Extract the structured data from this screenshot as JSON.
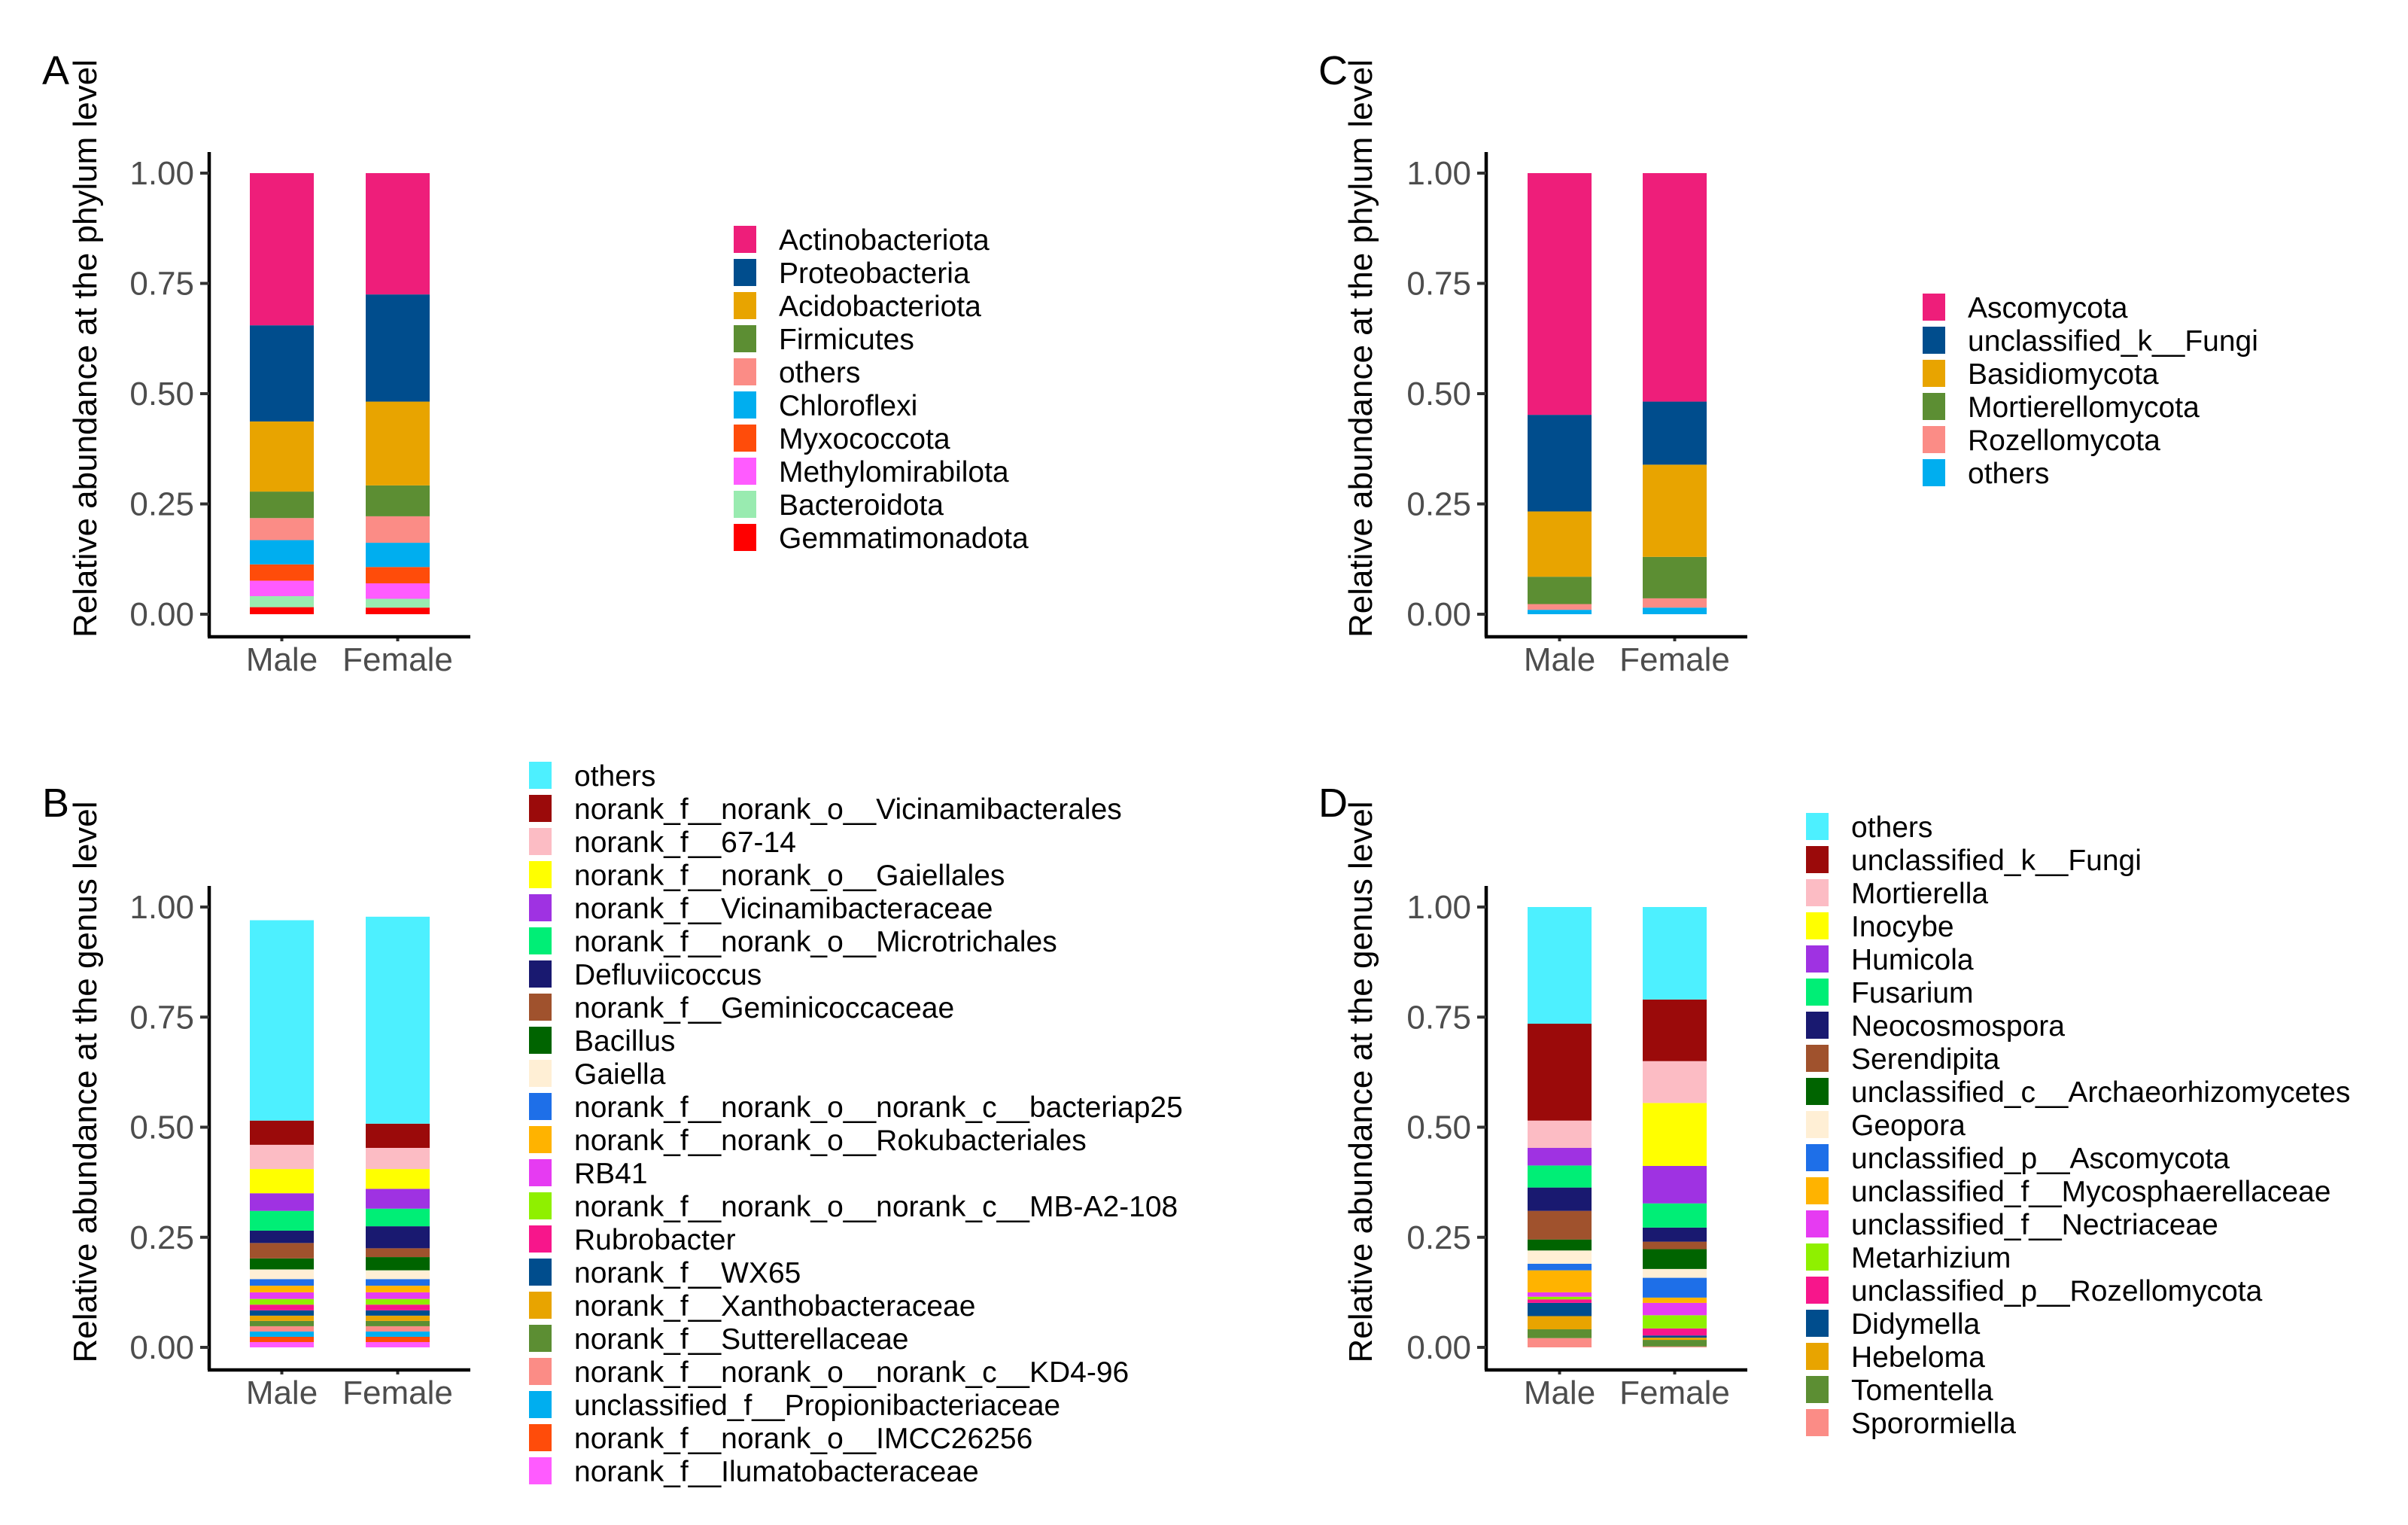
{
  "chart_data": [
    {
      "panel": "A",
      "type": "stacked-bar",
      "ylabel": "Relative abundance at the phylum level",
      "xlabel": "",
      "categories": [
        "Male",
        "Female"
      ],
      "yticks": [
        "0.00",
        "0.25",
        "0.50",
        "0.75",
        "1.00"
      ],
      "ylim": [
        0,
        1
      ],
      "legend_position": "right",
      "series": [
        {
          "name": "Actinobacteriota",
          "color": "#EE1E7A",
          "values": [
            0.345,
            0.275
          ]
        },
        {
          "name": "Proteobacteria",
          "color": "#004D8D",
          "values": [
            0.218,
            0.243
          ]
        },
        {
          "name": "Acidobacteriota",
          "color": "#E8A400",
          "values": [
            0.159,
            0.19
          ]
        },
        {
          "name": "Firmicutes",
          "color": "#5C8E33",
          "values": [
            0.06,
            0.07
          ]
        },
        {
          "name": "others",
          "color": "#FB8C86",
          "values": [
            0.05,
            0.06
          ]
        },
        {
          "name": "Chloroflexi",
          "color": "#00AEEF",
          "values": [
            0.055,
            0.055
          ]
        },
        {
          "name": "Myxococcota",
          "color": "#FF4C0A",
          "values": [
            0.037,
            0.037
          ]
        },
        {
          "name": "Methylomirabilota",
          "color": "#FF5BFF",
          "values": [
            0.035,
            0.035
          ]
        },
        {
          "name": "Bacteroidota",
          "color": "#99EBB0",
          "values": [
            0.025,
            0.02
          ]
        },
        {
          "name": "Gemmatimonadota",
          "color": "#FF0000",
          "values": [
            0.016,
            0.015
          ]
        }
      ]
    },
    {
      "panel": "B",
      "type": "stacked-bar",
      "ylabel": "Relative abundance at the genus level",
      "xlabel": "",
      "categories": [
        "Male",
        "Female"
      ],
      "yticks": [
        "0.00",
        "0.25",
        "0.50",
        "0.75",
        "1.00"
      ],
      "ylim": [
        0,
        1
      ],
      "legend_position": "right",
      "series": [
        {
          "name": "others",
          "color": "#4DF0FF",
          "values": [
            0.455,
            0.47
          ]
        },
        {
          "name": "norank_f__norank_o__Vicinamibacterales",
          "color": "#9B0A0A",
          "values": [
            0.055,
            0.055
          ]
        },
        {
          "name": "norank_f__67-14",
          "color": "#FCBCC4",
          "values": [
            0.055,
            0.048
          ]
        },
        {
          "name": "norank_f__norank_o__Gaiellales",
          "color": "#FFFF00",
          "values": [
            0.055,
            0.045
          ]
        },
        {
          "name": "norank_f__Vicinamibacteraceae",
          "color": "#9F32E2",
          "values": [
            0.04,
            0.045
          ]
        },
        {
          "name": "norank_f__norank_o__Microtrichales",
          "color": "#00EE76",
          "values": [
            0.045,
            0.04
          ]
        },
        {
          "name": "Defluviicoccus",
          "color": "#191970",
          "values": [
            0.028,
            0.05
          ]
        },
        {
          "name": "norank_f__Geminicoccaceae",
          "color": "#A0522D",
          "values": [
            0.035,
            0.02
          ]
        },
        {
          "name": "Bacillus",
          "color": "#006400",
          "values": [
            0.025,
            0.03
          ]
        },
        {
          "name": "Gaiella",
          "color": "#FFEFD5",
          "values": [
            0.022,
            0.02
          ]
        },
        {
          "name": "norank_f__norank_o__norank_c__bacteriap25",
          "color": "#1E6FE8",
          "values": [
            0.015,
            0.015
          ]
        },
        {
          "name": "norank_f__norank_o__Rokubacteriales",
          "color": "#FFB300",
          "values": [
            0.015,
            0.015
          ]
        },
        {
          "name": "RB41",
          "color": "#E63BF2",
          "values": [
            0.015,
            0.015
          ]
        },
        {
          "name": "norank_f__norank_o__norank_c__MB-A2-108",
          "color": "#8FF000",
          "values": [
            0.013,
            0.013
          ]
        },
        {
          "name": "Rubrobacter",
          "color": "#F7168B",
          "values": [
            0.013,
            0.013
          ]
        },
        {
          "name": "norank_f__WX65",
          "color": "#004D8D",
          "values": [
            0.012,
            0.012
          ]
        },
        {
          "name": "norank_f__Xanthobacteraceae",
          "color": "#E8A400",
          "values": [
            0.012,
            0.012
          ]
        },
        {
          "name": "norank_f__Sutterellaceae",
          "color": "#5C8E33",
          "values": [
            0.012,
            0.012
          ]
        },
        {
          "name": "norank_f__norank_o__norank_c__KD4-96",
          "color": "#FB8C86",
          "values": [
            0.012,
            0.012
          ]
        },
        {
          "name": "unclassified_f__Propionibacteriaceae",
          "color": "#00AEEF",
          "values": [
            0.012,
            0.012
          ]
        },
        {
          "name": "norank_f__norank_o__IMCC26256",
          "color": "#FF4C0A",
          "values": [
            0.012,
            0.012
          ]
        },
        {
          "name": "norank_f__Ilumatobacteraceae",
          "color": "#FF5BFF",
          "values": [
            0.012,
            0.012
          ]
        }
      ]
    },
    {
      "panel": "C",
      "type": "stacked-bar",
      "ylabel": "Relative abundance at the phylum level",
      "xlabel": "",
      "categories": [
        "Male",
        "Female"
      ],
      "yticks": [
        "0.00",
        "0.25",
        "0.50",
        "0.75",
        "1.00"
      ],
      "ylim": [
        0,
        1
      ],
      "legend_position": "right",
      "series": [
        {
          "name": "Ascomycota",
          "color": "#EE1E7A",
          "values": [
            0.548,
            0.518
          ]
        },
        {
          "name": "unclassified_k__Fungi",
          "color": "#004D8D",
          "values": [
            0.219,
            0.143
          ]
        },
        {
          "name": "Basidiomycota",
          "color": "#E8A400",
          "values": [
            0.148,
            0.209
          ]
        },
        {
          "name": "Mortierellomycota",
          "color": "#5C8E33",
          "values": [
            0.062,
            0.094
          ]
        },
        {
          "name": "Rozellomycota",
          "color": "#FB8C86",
          "values": [
            0.013,
            0.021
          ]
        },
        {
          "name": "others",
          "color": "#00AEEF",
          "values": [
            0.01,
            0.015
          ]
        }
      ]
    },
    {
      "panel": "D",
      "type": "stacked-bar",
      "ylabel": "Relative abundance at the genus level",
      "xlabel": "",
      "categories": [
        "Male",
        "Female"
      ],
      "yticks": [
        "0.00",
        "0.25",
        "0.50",
        "0.75",
        "1.00"
      ],
      "ylim": [
        0,
        1
      ],
      "legend_position": "right",
      "series": [
        {
          "name": "others",
          "color": "#4DF0FF",
          "values": [
            0.265,
            0.21
          ]
        },
        {
          "name": "unclassified_k__Fungi",
          "color": "#9B0A0A",
          "values": [
            0.22,
            0.14
          ]
        },
        {
          "name": "Mortierella",
          "color": "#FCBCC4",
          "values": [
            0.062,
            0.095
          ]
        },
        {
          "name": "Inocybe",
          "color": "#FFFF00",
          "values": [
            0.0,
            0.143
          ]
        },
        {
          "name": "Humicola",
          "color": "#9F32E2",
          "values": [
            0.04,
            0.085
          ]
        },
        {
          "name": "Fusarium",
          "color": "#00EE76",
          "values": [
            0.05,
            0.055
          ]
        },
        {
          "name": "Neocosmospora",
          "color": "#191970",
          "values": [
            0.053,
            0.032
          ]
        },
        {
          "name": "Serendipita",
          "color": "#A0522D",
          "values": [
            0.065,
            0.017
          ]
        },
        {
          "name": "unclassified_c__Archaeorhizomycetes",
          "color": "#006400",
          "values": [
            0.025,
            0.045
          ]
        },
        {
          "name": "Geopora",
          "color": "#FFEFD5",
          "values": [
            0.03,
            0.02
          ]
        },
        {
          "name": "unclassified_p__Ascomycota",
          "color": "#1E6FE8",
          "values": [
            0.015,
            0.045
          ]
        },
        {
          "name": "unclassified_f__Mycosphaerellaceae",
          "color": "#FFB300",
          "values": [
            0.05,
            0.012
          ]
        },
        {
          "name": "unclassified_f__Nectriaceae",
          "color": "#E63BF2",
          "values": [
            0.01,
            0.028
          ]
        },
        {
          "name": "Metarhizium",
          "color": "#8FF000",
          "values": [
            0.006,
            0.03
          ]
        },
        {
          "name": "unclassified_p__Rozellomycota",
          "color": "#F7168B",
          "values": [
            0.008,
            0.016
          ]
        },
        {
          "name": "Didymella",
          "color": "#004D8D",
          "values": [
            0.03,
            0.005
          ]
        },
        {
          "name": "Hebeloma",
          "color": "#E8A400",
          "values": [
            0.03,
            0.005
          ]
        },
        {
          "name": "Tomentella",
          "color": "#5C8E33",
          "values": [
            0.02,
            0.015
          ]
        },
        {
          "name": "Sporormiella",
          "color": "#FB8C86",
          "values": [
            0.021,
            0.002
          ]
        }
      ]
    }
  ]
}
